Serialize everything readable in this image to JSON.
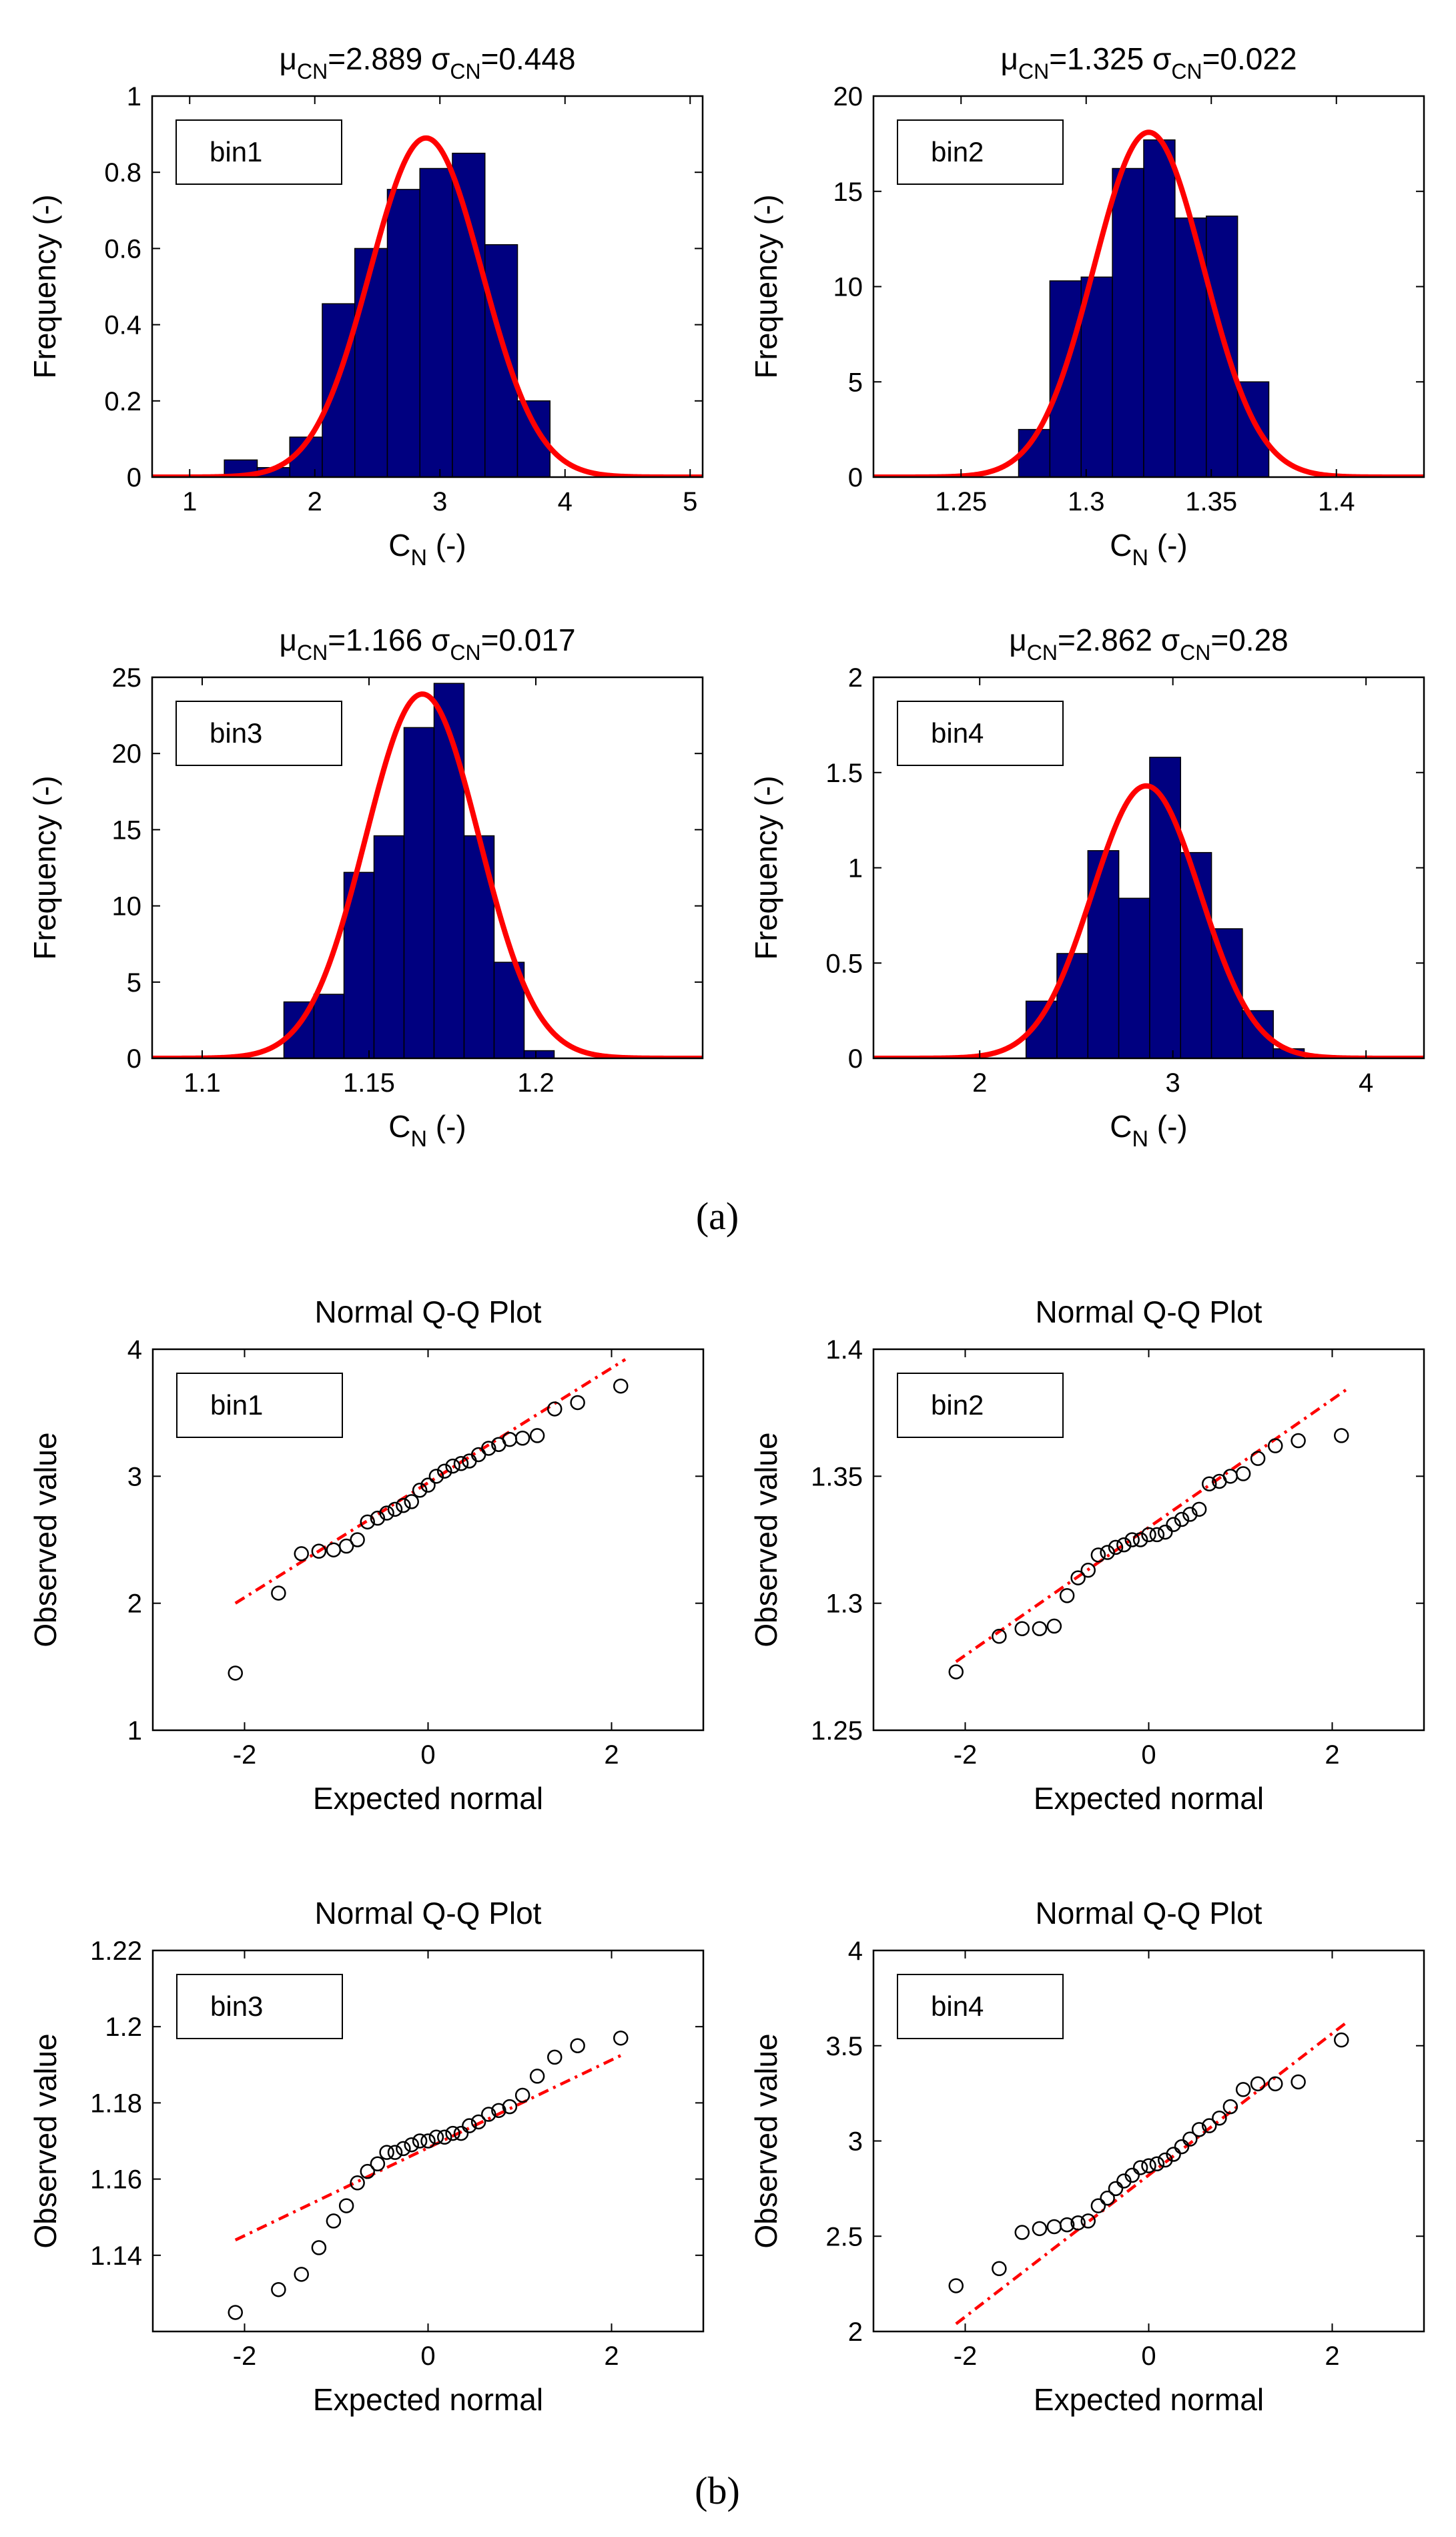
{
  "panel_labels": {
    "a": "(a)",
    "b": "(b)"
  },
  "chart_data": [
    {
      "id": "hist1",
      "type": "bar",
      "legend": "bin1",
      "title": {
        "mu": "2.889",
        "sigma": "0.448"
      },
      "title_parts": {
        "mu_sym": "μ",
        "sigma_sym": "σ",
        "sub": "CN",
        "eq": "="
      },
      "xlabel": "C",
      "xlabel_sub": "N",
      "xlabel_unit": " (-)",
      "ylabel": "Frequency (-)",
      "xlim": [
        0.7,
        5.1
      ],
      "ylim": [
        0,
        1
      ],
      "xticks": [
        1,
        2,
        3,
        4,
        5
      ],
      "xtick_labels": [
        "1",
        "2",
        "3",
        "4",
        "5"
      ],
      "yticks": [
        0,
        0.2,
        0.4,
        0.6,
        0.8,
        1
      ],
      "ytick_labels": [
        "0",
        "0.2",
        "0.4",
        "0.6",
        "0.8",
        "1"
      ],
      "bins": [
        [
          1.277,
          1.54,
          0.045
        ],
        [
          1.54,
          1.8,
          0.025
        ],
        [
          1.8,
          2.06,
          0.105
        ],
        [
          2.06,
          2.32,
          0.455
        ],
        [
          2.32,
          2.58,
          0.6
        ],
        [
          2.58,
          2.84,
          0.755
        ],
        [
          2.84,
          3.1,
          0.81
        ],
        [
          3.1,
          3.36,
          0.85
        ],
        [
          3.36,
          3.62,
          0.61
        ],
        [
          3.62,
          3.88,
          0.2
        ]
      ],
      "normal": {
        "mu": 2.889,
        "sigma": 0.448,
        "peak": 0.89
      },
      "colors": {
        "bar": "#000080",
        "curve": "#ff0000"
      }
    },
    {
      "id": "hist2",
      "type": "bar",
      "legend": "bin2",
      "title": {
        "mu": "1.325",
        "sigma": "0.022"
      },
      "title_parts": {
        "mu_sym": "μ",
        "sigma_sym": "σ",
        "sub": "CN",
        "eq": "="
      },
      "xlabel": "C",
      "xlabel_sub": "N",
      "xlabel_unit": " (-)",
      "ylabel": "Frequency (-)",
      "xlim": [
        1.215,
        1.435
      ],
      "ylim": [
        0,
        20
      ],
      "xticks": [
        1.25,
        1.3,
        1.35,
        1.4
      ],
      "xtick_labels": [
        "1.25",
        "1.3",
        "1.35",
        "1.4"
      ],
      "yticks": [
        0,
        5,
        10,
        15,
        20
      ],
      "ytick_labels": [
        "0",
        "5",
        "10",
        "15",
        "20"
      ],
      "bins": [
        [
          1.273,
          1.2855,
          2.5
        ],
        [
          1.2855,
          1.298,
          10.3
        ],
        [
          1.298,
          1.3105,
          10.5
        ],
        [
          1.3105,
          1.323,
          16.2
        ],
        [
          1.323,
          1.3355,
          17.7
        ],
        [
          1.3355,
          1.348,
          13.6
        ],
        [
          1.348,
          1.3605,
          13.7
        ],
        [
          1.3605,
          1.373,
          5.0
        ]
      ],
      "normal": {
        "mu": 1.325,
        "sigma": 0.022,
        "peak": 18.1
      },
      "colors": {
        "bar": "#000080",
        "curve": "#ff0000"
      }
    },
    {
      "id": "hist3",
      "type": "bar",
      "legend": "bin3",
      "title": {
        "mu": "1.166",
        "sigma": "0.017"
      },
      "title_parts": {
        "mu_sym": "μ",
        "sigma_sym": "σ",
        "sub": "CN",
        "eq": "="
      },
      "xlabel": "C",
      "xlabel_sub": "N",
      "xlabel_unit": " (-)",
      "ylabel": "Frequency (-)",
      "xlim": [
        1.085,
        1.25
      ],
      "ylim": [
        0,
        25
      ],
      "xticks": [
        1.1,
        1.15,
        1.2
      ],
      "xtick_labels": [
        "1.1",
        "1.15",
        "1.2"
      ],
      "yticks": [
        0,
        5,
        10,
        15,
        20,
        25
      ],
      "ytick_labels": [
        "0",
        "5",
        "10",
        "15",
        "20",
        "25"
      ],
      "bins": [
        [
          1.1245,
          1.1335,
          3.7
        ],
        [
          1.1335,
          1.1425,
          4.2
        ],
        [
          1.1425,
          1.1515,
          12.2
        ],
        [
          1.1515,
          1.1605,
          14.6
        ],
        [
          1.1605,
          1.1695,
          21.7
        ],
        [
          1.1695,
          1.1785,
          24.6
        ],
        [
          1.1785,
          1.1875,
          14.6
        ],
        [
          1.1875,
          1.1965,
          6.3
        ],
        [
          1.1965,
          1.2055,
          0.5
        ]
      ],
      "normal": {
        "mu": 1.166,
        "sigma": 0.017,
        "peak": 23.9
      },
      "colors": {
        "bar": "#000080",
        "curve": "#ff0000"
      }
    },
    {
      "id": "hist4",
      "type": "bar",
      "legend": "bin4",
      "title": {
        "mu": "2.862",
        "sigma": "0.28"
      },
      "title_parts": {
        "mu_sym": "μ",
        "sigma_sym": "σ",
        "sub": "CN",
        "eq": "="
      },
      "xlabel": "C",
      "xlabel_sub": "N",
      "xlabel_unit": " (-)",
      "ylabel": "Frequency (-)",
      "xlim": [
        1.45,
        4.3
      ],
      "ylim": [
        0,
        2
      ],
      "xticks": [
        2,
        3,
        4
      ],
      "xtick_labels": [
        "2",
        "3",
        "4"
      ],
      "yticks": [
        0,
        0.5,
        1,
        1.5,
        2
      ],
      "ytick_labels": [
        "0",
        "0.5",
        "1",
        "1.5",
        "2"
      ],
      "bins": [
        [
          2.24,
          2.4,
          0.3
        ],
        [
          2.4,
          2.56,
          0.55
        ],
        [
          2.56,
          2.72,
          1.09
        ],
        [
          2.72,
          2.88,
          0.84
        ],
        [
          2.88,
          3.04,
          1.58
        ],
        [
          3.04,
          3.2,
          1.08
        ],
        [
          3.2,
          3.36,
          0.68
        ],
        [
          3.36,
          3.52,
          0.25
        ],
        [
          3.52,
          3.68,
          0.05
        ]
      ],
      "normal": {
        "mu": 2.862,
        "sigma": 0.28,
        "peak": 1.43
      },
      "colors": {
        "bar": "#000080",
        "curve": "#ff0000"
      }
    },
    {
      "id": "qq1",
      "type": "scatter",
      "legend": "bin1",
      "title": "Normal Q-Q Plot",
      "xlabel": "Expected normal",
      "ylabel": "Observed value",
      "xlim": [
        -3,
        3
      ],
      "ylim": [
        1,
        4
      ],
      "xticks": [
        -2,
        0,
        2
      ],
      "xtick_labels": [
        "-2",
        "0",
        "2"
      ],
      "yticks": [
        1,
        2,
        3,
        4
      ],
      "ytick_labels": [
        "1",
        "2",
        "3",
        "4"
      ],
      "line": [
        [
          -2.1,
          2.0
        ],
        [
          2.15,
          3.92
        ]
      ],
      "points": [
        [
          -2.1,
          1.45
        ],
        [
          -1.63,
          2.08
        ],
        [
          -1.38,
          2.39
        ],
        [
          -1.19,
          2.41
        ],
        [
          -1.03,
          2.42
        ],
        [
          -0.89,
          2.45
        ],
        [
          -0.77,
          2.5
        ],
        [
          -0.66,
          2.64
        ],
        [
          -0.55,
          2.67
        ],
        [
          -0.45,
          2.71
        ],
        [
          -0.36,
          2.74
        ],
        [
          -0.27,
          2.77
        ],
        [
          -0.18,
          2.8
        ],
        [
          -0.09,
          2.89
        ],
        [
          0.0,
          2.93
        ],
        [
          0.09,
          3.0
        ],
        [
          0.18,
          3.04
        ],
        [
          0.27,
          3.08
        ],
        [
          0.36,
          3.1
        ],
        [
          0.45,
          3.12
        ],
        [
          0.55,
          3.17
        ],
        [
          0.66,
          3.22
        ],
        [
          0.77,
          3.25
        ],
        [
          0.89,
          3.29
        ],
        [
          1.03,
          3.3
        ],
        [
          1.19,
          3.32
        ],
        [
          1.38,
          3.53
        ],
        [
          1.63,
          3.58
        ],
        [
          2.1,
          3.71
        ]
      ],
      "colors": {
        "points": "#000000",
        "line": "#ff0000"
      }
    },
    {
      "id": "qq2",
      "type": "scatter",
      "legend": "bin2",
      "title": "Normal Q-Q Plot",
      "xlabel": "Expected normal",
      "ylabel": "Observed value",
      "xlim": [
        -3,
        3
      ],
      "ylim": [
        1.25,
        1.4
      ],
      "xticks": [
        -2,
        0,
        2
      ],
      "xtick_labels": [
        "-2",
        "0",
        "2"
      ],
      "yticks": [
        1.25,
        1.3,
        1.35,
        1.4
      ],
      "ytick_labels": [
        "1.25",
        "1.3",
        "1.35",
        "1.4"
      ],
      "line": [
        [
          -2.1,
          1.277
        ],
        [
          2.15,
          1.384
        ]
      ],
      "points": [
        [
          -2.1,
          1.273
        ],
        [
          -1.63,
          1.287
        ],
        [
          -1.38,
          1.29
        ],
        [
          -1.19,
          1.29
        ],
        [
          -1.03,
          1.291
        ],
        [
          -0.89,
          1.303
        ],
        [
          -0.77,
          1.31
        ],
        [
          -0.66,
          1.313
        ],
        [
          -0.55,
          1.319
        ],
        [
          -0.45,
          1.32
        ],
        [
          -0.36,
          1.322
        ],
        [
          -0.27,
          1.323
        ],
        [
          -0.18,
          1.325
        ],
        [
          -0.09,
          1.325
        ],
        [
          0.0,
          1.327
        ],
        [
          0.09,
          1.327
        ],
        [
          0.18,
          1.328
        ],
        [
          0.27,
          1.331
        ],
        [
          0.36,
          1.333
        ],
        [
          0.45,
          1.335
        ],
        [
          0.55,
          1.337
        ],
        [
          0.66,
          1.347
        ],
        [
          0.77,
          1.348
        ],
        [
          0.89,
          1.35
        ],
        [
          1.03,
          1.351
        ],
        [
          1.19,
          1.357
        ],
        [
          1.38,
          1.362
        ],
        [
          1.63,
          1.364
        ],
        [
          2.1,
          1.366
        ]
      ],
      "colors": {
        "points": "#000000",
        "line": "#ff0000"
      }
    },
    {
      "id": "qq3",
      "type": "scatter",
      "legend": "bin3",
      "title": "Normal Q-Q Plot",
      "xlabel": "Expected normal",
      "ylabel": "Observed value",
      "xlim": [
        -3,
        3
      ],
      "ylim": [
        1.12,
        1.22
      ],
      "xticks": [
        -2,
        0,
        2
      ],
      "xtick_labels": [
        "-2",
        "0",
        "2"
      ],
      "yticks": [
        1.14,
        1.16,
        1.18,
        1.2,
        1.22
      ],
      "ytick_labels": [
        "1.14",
        "1.16",
        "1.18",
        "1.2",
        "1.22"
      ],
      "line": [
        [
          -2.1,
          1.144
        ],
        [
          2.15,
          1.193
        ]
      ],
      "points": [
        [
          -2.1,
          1.125
        ],
        [
          -1.63,
          1.131
        ],
        [
          -1.38,
          1.135
        ],
        [
          -1.19,
          1.142
        ],
        [
          -1.03,
          1.149
        ],
        [
          -0.89,
          1.153
        ],
        [
          -0.77,
          1.159
        ],
        [
          -0.66,
          1.162
        ],
        [
          -0.55,
          1.164
        ],
        [
          -0.45,
          1.167
        ],
        [
          -0.36,
          1.167
        ],
        [
          -0.27,
          1.168
        ],
        [
          -0.18,
          1.169
        ],
        [
          -0.09,
          1.17
        ],
        [
          0.0,
          1.17
        ],
        [
          0.09,
          1.171
        ],
        [
          0.18,
          1.171
        ],
        [
          0.27,
          1.172
        ],
        [
          0.36,
          1.172
        ],
        [
          0.45,
          1.174
        ],
        [
          0.55,
          1.175
        ],
        [
          0.66,
          1.177
        ],
        [
          0.77,
          1.178
        ],
        [
          0.89,
          1.179
        ],
        [
          1.03,
          1.182
        ],
        [
          1.19,
          1.187
        ],
        [
          1.38,
          1.192
        ],
        [
          1.63,
          1.195
        ],
        [
          2.1,
          1.197
        ]
      ],
      "colors": {
        "points": "#000000",
        "line": "#ff0000"
      }
    },
    {
      "id": "qq4",
      "type": "scatter",
      "legend": "bin4",
      "title": "Normal Q-Q Plot",
      "xlabel": "Expected normal",
      "ylabel": "Observed value",
      "xlim": [
        -3,
        3
      ],
      "ylim": [
        2,
        4
      ],
      "xticks": [
        -2,
        0,
        2
      ],
      "xtick_labels": [
        "-2",
        "0",
        "2"
      ],
      "yticks": [
        2,
        2.5,
        3,
        3.5,
        4
      ],
      "ytick_labels": [
        "2",
        "2.5",
        "3",
        "3.5",
        "4"
      ],
      "line": [
        [
          -2.1,
          2.04
        ],
        [
          2.15,
          3.62
        ]
      ],
      "points": [
        [
          -2.1,
          2.24
        ],
        [
          -1.63,
          2.33
        ],
        [
          -1.38,
          2.52
        ],
        [
          -1.19,
          2.54
        ],
        [
          -1.03,
          2.55
        ],
        [
          -0.89,
          2.56
        ],
        [
          -0.77,
          2.57
        ],
        [
          -0.66,
          2.58
        ],
        [
          -0.55,
          2.66
        ],
        [
          -0.45,
          2.7
        ],
        [
          -0.36,
          2.75
        ],
        [
          -0.27,
          2.79
        ],
        [
          -0.18,
          2.82
        ],
        [
          -0.09,
          2.86
        ],
        [
          0.0,
          2.87
        ],
        [
          0.09,
          2.88
        ],
        [
          0.18,
          2.9
        ],
        [
          0.27,
          2.93
        ],
        [
          0.36,
          2.97
        ],
        [
          0.45,
          3.01
        ],
        [
          0.55,
          3.06
        ],
        [
          0.66,
          3.08
        ],
        [
          0.77,
          3.12
        ],
        [
          0.89,
          3.18
        ],
        [
          1.03,
          3.27
        ],
        [
          1.19,
          3.3
        ],
        [
          1.38,
          3.3
        ],
        [
          1.63,
          3.31
        ],
        [
          2.1,
          3.53
        ]
      ],
      "colors": {
        "points": "#000000",
        "line": "#ff0000"
      }
    }
  ]
}
